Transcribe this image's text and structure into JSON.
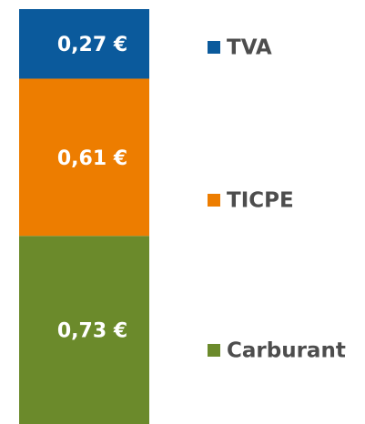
{
  "chart_data": {
    "type": "stacked-bar",
    "series": [
      {
        "name": "Carburant",
        "color": "#6b8a2b",
        "values": [
          0.73
        ],
        "value_labels": [
          "0,73 €"
        ]
      },
      {
        "name": "TICPE",
        "color": "#ed7d00",
        "values": [
          0.61
        ],
        "value_labels": [
          "0,61 €"
        ]
      },
      {
        "name": "TVA",
        "color": "#0b5a9c",
        "values": [
          0.27
        ],
        "value_labels": [
          "0,27 €"
        ]
      }
    ]
  }
}
